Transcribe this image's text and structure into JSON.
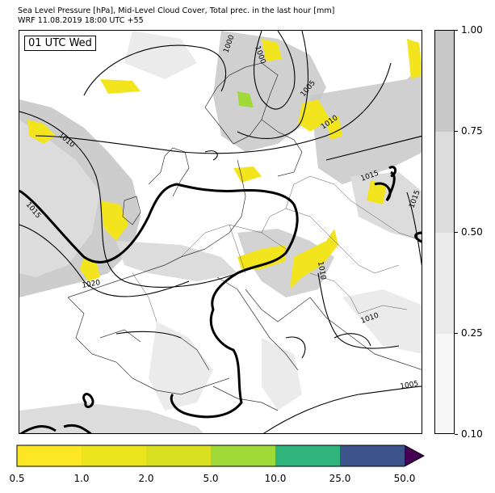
{
  "title": {
    "line1": "Sea Level Pressure [hPa], Mid-Level Cloud Cover, Total prec. in the last hour [mm]",
    "line2": "WRF 11.08.2019 18:00 UTC +55"
  },
  "time_badge": "01 UTC Wed",
  "cloud_colorbar": {
    "ticks": [
      "1.00",
      "0.75",
      "0.50",
      "0.25",
      "0.10"
    ],
    "colors": [
      "#c8c8c8",
      "#dcdcdc",
      "#ebebeb",
      "#f7f7f7"
    ]
  },
  "precip_colorbar": {
    "ticks": [
      "0.5",
      "1.0",
      "2.0",
      "5.0",
      "10.0",
      "25.0",
      "50.0"
    ],
    "colors": [
      "#fde725",
      "#ede51b",
      "#d9e021",
      "#a0da39",
      "#2fb47c",
      "#3b528b",
      "#440154"
    ]
  },
  "isobar_labels": [
    {
      "text": "1000",
      "key": "a"
    },
    {
      "text": "1000",
      "key": "b"
    },
    {
      "text": "1005",
      "key": "c"
    },
    {
      "text": "1010",
      "key": "d"
    },
    {
      "text": "1010",
      "key": "e"
    },
    {
      "text": "1015",
      "key": "f"
    },
    {
      "text": "1015",
      "key": "g"
    },
    {
      "text": "1015",
      "key": "h"
    },
    {
      "text": "1020",
      "key": "i"
    },
    {
      "text": "1010",
      "key": "j"
    },
    {
      "text": "1010",
      "key": "k"
    },
    {
      "text": "1005",
      "key": "l"
    }
  ]
}
